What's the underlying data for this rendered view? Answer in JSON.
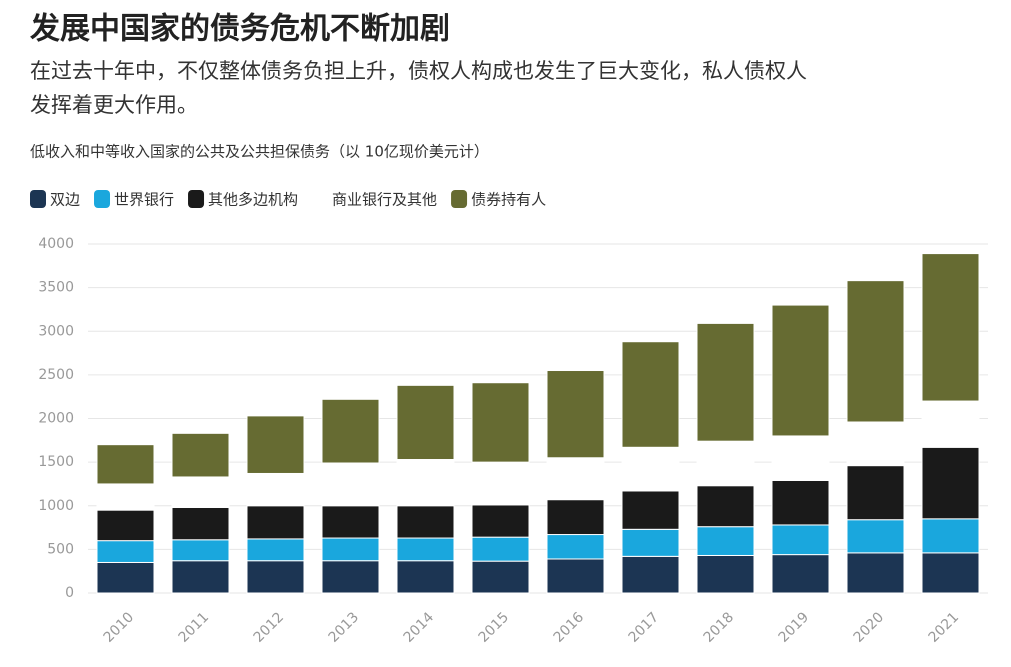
{
  "chart_data": {
    "type": "stacked_bar",
    "title": "发展中国家的债务危机不断加剧",
    "subtitle": [
      "在过去十年中，不仅整体债务负担上升，债权人构成也发生了巨大变化，私人债权人",
      "发挥着更大作用。"
    ],
    "caption": "低收入和中等收入国家的公共及公共担保债务（以 10亿现价美元计）",
    "categories": [
      "2010",
      "2011",
      "2012",
      "2013",
      "2014",
      "2015",
      "2016",
      "2017",
      "2018",
      "2019",
      "2020",
      "2021"
    ],
    "series": [
      {
        "name": "双边",
        "color": "#1c3553",
        "values": [
          350,
          370,
          370,
          370,
          370,
          365,
          390,
          420,
          430,
          440,
          460,
          460
        ]
      },
      {
        "name": "世界银行",
        "color": "#1aa7dd",
        "values": [
          250,
          240,
          250,
          260,
          260,
          275,
          280,
          310,
          330,
          340,
          380,
          390
        ]
      },
      {
        "name": "其他多边机构",
        "color": "#1a1a1a",
        "values": [
          350,
          370,
          380,
          370,
          370,
          370,
          400,
          440,
          470,
          510,
          620,
          820
        ]
      },
      {
        "name": "商业银行及其他",
        "color": "#ffffff",
        "values": [
          300,
          350,
          370,
          490,
          530,
          490,
          480,
          500,
          510,
          510,
          500,
          530
        ]
      },
      {
        "name": "债券持有人",
        "color": "#666b32",
        "values": [
          450,
          500,
          660,
          730,
          850,
          910,
          1000,
          1210,
          1350,
          1500,
          1620,
          1690
        ]
      }
    ],
    "ylim": [
      0,
      4000
    ],
    "yticks": [
      0,
      500,
      1000,
      1500,
      2000,
      2500,
      3000,
      3500,
      4000
    ],
    "grid": true
  }
}
